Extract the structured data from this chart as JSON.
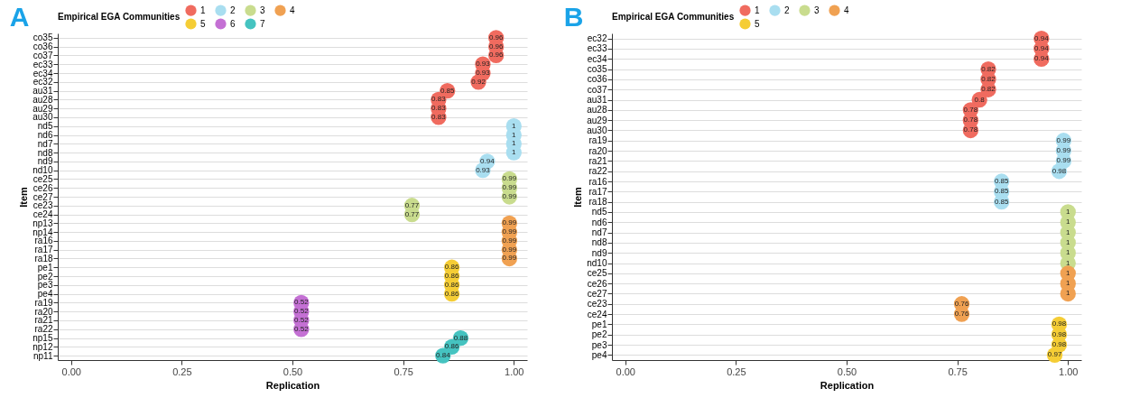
{
  "chart_data": [
    {
      "type": "scatter",
      "orientation": "horizontal",
      "title": "A",
      "xlabel": "Replication",
      "ylabel": "Item",
      "legend_title": "Empirical EGA Communities",
      "legend": "top",
      "grid": "y",
      "data_labels": true,
      "marker": "circle",
      "categories": [
        "co35",
        "co36",
        "co37",
        "ec33",
        "ec34",
        "ec32",
        "au31",
        "au28",
        "au29",
        "au30",
        "nd5",
        "nd6",
        "nd7",
        "nd8",
        "nd9",
        "nd10",
        "ce25",
        "ce26",
        "ce27",
        "ce23",
        "ce24",
        "np13",
        "np14",
        "ra16",
        "ra17",
        "ra18",
        "pe1",
        "pe2",
        "pe3",
        "pe4",
        "ra19",
        "ra20",
        "ra21",
        "ra22",
        "np15",
        "np12",
        "np11"
      ],
      "xlim": [
        -0.03,
        1.03
      ],
      "xticks": [
        {
          "value": 0,
          "label": "0.00"
        },
        {
          "value": 0.25,
          "label": "0.25"
        },
        {
          "value": 0.5,
          "label": "0.50"
        },
        {
          "value": 0.75,
          "label": "0.75"
        },
        {
          "value": 1,
          "label": "1.00"
        }
      ],
      "series": [
        {
          "name": "1",
          "color": "#f06b5f",
          "values": [
            0.96,
            0.96,
            0.96,
            0.93,
            0.93,
            0.92,
            0.85,
            0.83,
            0.83,
            0.83,
            null,
            null,
            null,
            null,
            null,
            null,
            null,
            null,
            null,
            null,
            null,
            null,
            null,
            null,
            null,
            null,
            null,
            null,
            null,
            null,
            null,
            null,
            null,
            null,
            null,
            null,
            null
          ]
        },
        {
          "name": "2",
          "color": "#a9def0",
          "values": [
            null,
            null,
            null,
            null,
            null,
            null,
            null,
            null,
            null,
            null,
            1,
            1,
            1,
            1,
            0.94,
            0.93,
            null,
            null,
            null,
            null,
            null,
            null,
            null,
            null,
            null,
            null,
            null,
            null,
            null,
            null,
            null,
            null,
            null,
            null,
            null,
            null,
            null
          ]
        },
        {
          "name": "3",
          "color": "#c9dc8e",
          "values": [
            null,
            null,
            null,
            null,
            null,
            null,
            null,
            null,
            null,
            null,
            null,
            null,
            null,
            null,
            null,
            null,
            0.99,
            0.99,
            0.99,
            0.77,
            0.77,
            null,
            null,
            null,
            null,
            null,
            null,
            null,
            null,
            null,
            null,
            null,
            null,
            null,
            null,
            null,
            null
          ]
        },
        {
          "name": "4",
          "color": "#f0a152",
          "values": [
            null,
            null,
            null,
            null,
            null,
            null,
            null,
            null,
            null,
            null,
            null,
            null,
            null,
            null,
            null,
            null,
            null,
            null,
            null,
            null,
            null,
            0.99,
            0.99,
            0.99,
            0.99,
            0.99,
            null,
            null,
            null,
            null,
            null,
            null,
            null,
            null,
            null,
            null,
            null
          ]
        },
        {
          "name": "5",
          "color": "#f5cd35",
          "values": [
            null,
            null,
            null,
            null,
            null,
            null,
            null,
            null,
            null,
            null,
            null,
            null,
            null,
            null,
            null,
            null,
            null,
            null,
            null,
            null,
            null,
            null,
            null,
            null,
            null,
            null,
            0.86,
            0.86,
            0.86,
            0.86,
            null,
            null,
            null,
            null,
            null,
            null,
            null
          ]
        },
        {
          "name": "6",
          "color": "#c470d4",
          "values": [
            null,
            null,
            null,
            null,
            null,
            null,
            null,
            null,
            null,
            null,
            null,
            null,
            null,
            null,
            null,
            null,
            null,
            null,
            null,
            null,
            null,
            null,
            null,
            null,
            null,
            null,
            null,
            null,
            null,
            null,
            0.52,
            0.52,
            0.52,
            0.52,
            null,
            null,
            null
          ]
        },
        {
          "name": "7",
          "color": "#45c3c0",
          "values": [
            null,
            null,
            null,
            null,
            null,
            null,
            null,
            null,
            null,
            null,
            null,
            null,
            null,
            null,
            null,
            null,
            null,
            null,
            null,
            null,
            null,
            null,
            null,
            null,
            null,
            null,
            null,
            null,
            null,
            null,
            null,
            null,
            null,
            null,
            0.88,
            0.86,
            0.84
          ]
        }
      ]
    },
    {
      "type": "scatter",
      "orientation": "horizontal",
      "title": "B",
      "xlabel": "Replication",
      "ylabel": "Item",
      "legend_title": "Empirical EGA Communities",
      "legend": "top",
      "grid": "y",
      "data_labels": true,
      "marker": "circle",
      "categories": [
        "ec32",
        "ec33",
        "ec34",
        "co35",
        "co36",
        "co37",
        "au31",
        "au28",
        "au29",
        "au30",
        "ra19",
        "ra20",
        "ra21",
        "ra22",
        "ra16",
        "ra17",
        "ra18",
        "nd5",
        "nd6",
        "nd7",
        "nd8",
        "nd9",
        "nd10",
        "ce25",
        "ce26",
        "ce27",
        "ce23",
        "ce24",
        "pe1",
        "pe2",
        "pe3",
        "pe4"
      ],
      "xlim": [
        -0.03,
        1.03
      ],
      "xticks": [
        {
          "value": 0,
          "label": "0.00"
        },
        {
          "value": 0.25,
          "label": "0.25"
        },
        {
          "value": 0.5,
          "label": "0.50"
        },
        {
          "value": 0.75,
          "label": "0.75"
        },
        {
          "value": 1,
          "label": "1.00"
        }
      ],
      "series": [
        {
          "name": "1",
          "color": "#f06b5f",
          "values": [
            0.94,
            0.94,
            0.94,
            0.82,
            0.82,
            0.82,
            0.8,
            0.78,
            0.78,
            0.78,
            null,
            null,
            null,
            null,
            null,
            null,
            null,
            null,
            null,
            null,
            null,
            null,
            null,
            null,
            null,
            null,
            null,
            null,
            null,
            null,
            null,
            null
          ]
        },
        {
          "name": "2",
          "color": "#a9def0",
          "values": [
            null,
            null,
            null,
            null,
            null,
            null,
            null,
            null,
            null,
            null,
            0.99,
            0.99,
            0.99,
            0.98,
            0.85,
            0.85,
            0.85,
            null,
            null,
            null,
            null,
            null,
            null,
            null,
            null,
            null,
            null,
            null,
            null,
            null,
            null,
            null
          ]
        },
        {
          "name": "3",
          "color": "#c9dc8e",
          "values": [
            null,
            null,
            null,
            null,
            null,
            null,
            null,
            null,
            null,
            null,
            null,
            null,
            null,
            null,
            null,
            null,
            null,
            1,
            1,
            1,
            1,
            1,
            1,
            null,
            null,
            null,
            null,
            null,
            null,
            null,
            null,
            null
          ]
        },
        {
          "name": "4",
          "color": "#f0a152",
          "values": [
            null,
            null,
            null,
            null,
            null,
            null,
            null,
            null,
            null,
            null,
            null,
            null,
            null,
            null,
            null,
            null,
            null,
            null,
            null,
            null,
            null,
            null,
            null,
            1,
            1,
            1,
            0.76,
            0.76,
            null,
            null,
            null,
            null
          ]
        },
        {
          "name": "5",
          "color": "#f5cd35",
          "values": [
            null,
            null,
            null,
            null,
            null,
            null,
            null,
            null,
            null,
            null,
            null,
            null,
            null,
            null,
            null,
            null,
            null,
            null,
            null,
            null,
            null,
            null,
            null,
            null,
            null,
            null,
            null,
            null,
            0.98,
            0.98,
            0.98,
            0.97
          ]
        }
      ]
    }
  ]
}
